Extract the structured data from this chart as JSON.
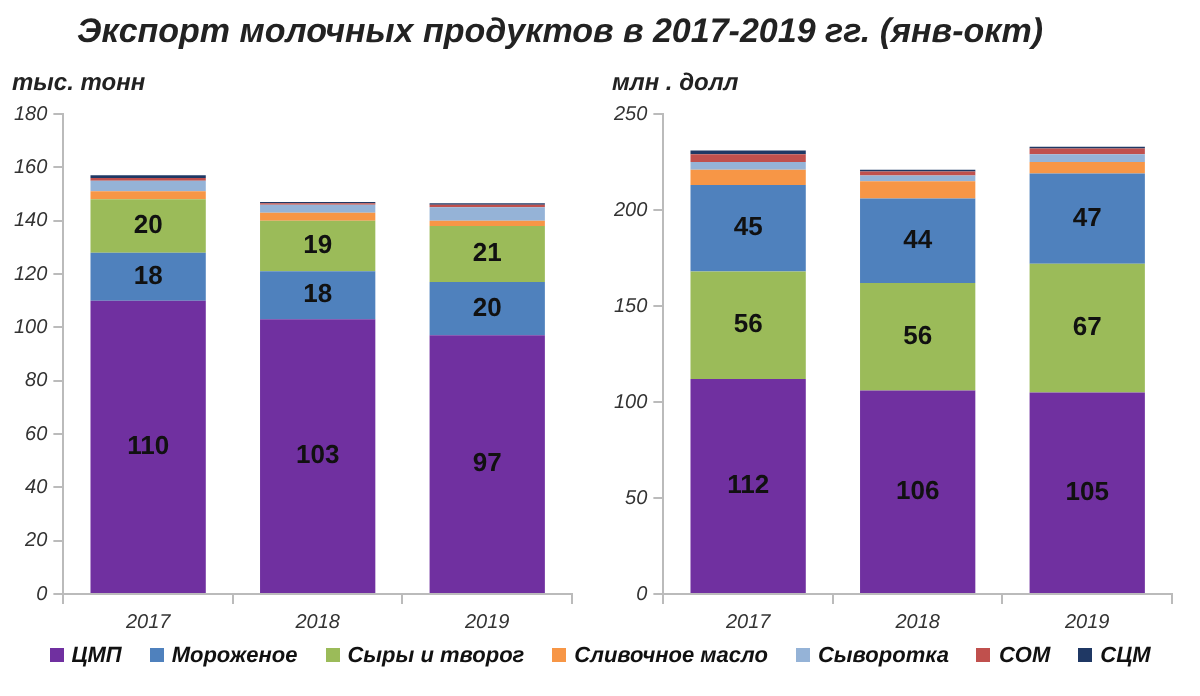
{
  "chart_data": [
    {
      "type": "bar",
      "title": "Экспорт молочных продуктов в 2017-2019 гг. (янв-окт)",
      "ylabel": "тыс. тонн",
      "categories": [
        "2017",
        "2018",
        "2019"
      ],
      "stacked": true,
      "ylim": [
        0,
        180
      ],
      "yticks": [
        0,
        20,
        40,
        60,
        80,
        100,
        120,
        140,
        160,
        180
      ],
      "grid": false,
      "legend": "bottom",
      "series": [
        {
          "name": "ЦМП",
          "color": "#7030a0",
          "values": [
            110,
            103,
            97
          ],
          "value_labels": [
            "110",
            "103",
            "97"
          ]
        },
        {
          "name": "Мороженое",
          "color": "#4f81bd",
          "values": [
            18,
            18,
            20
          ],
          "value_labels": [
            "18",
            "18",
            "20"
          ]
        },
        {
          "name": "Сыры и творог",
          "color": "#9bbb59",
          "values": [
            20,
            19,
            21
          ],
          "value_labels": [
            "20",
            "19",
            "21"
          ]
        },
        {
          "name": "Сливочное масло",
          "color": "#f79646",
          "values": [
            3,
            3,
            2
          ],
          "value_labels": [
            null,
            null,
            null
          ]
        },
        {
          "name": "Сыворотка",
          "color": "#95b3d7",
          "values": [
            4,
            3,
            5
          ],
          "value_labels": [
            null,
            null,
            null
          ]
        },
        {
          "name": "СОМ",
          "color": "#c0504d",
          "values": [
            1,
            0.5,
            1
          ],
          "value_labels": [
            null,
            null,
            null
          ]
        },
        {
          "name": "СЦМ",
          "color": "#1f3864",
          "values": [
            1,
            0.5,
            0.5
          ],
          "value_labels": [
            null,
            null,
            null
          ]
        }
      ]
    },
    {
      "type": "bar",
      "ylabel": "млн . долл",
      "categories": [
        "2017",
        "2018",
        "2019"
      ],
      "stacked": true,
      "ylim": [
        0,
        250
      ],
      "yticks": [
        0,
        50,
        100,
        150,
        200,
        250
      ],
      "grid": false,
      "legend": "bottom",
      "series": [
        {
          "name": "ЦМП",
          "color": "#7030a0",
          "values": [
            112,
            106,
            105
          ],
          "value_labels": [
            "112",
            "106",
            "105"
          ]
        },
        {
          "name": "Сыры и творог",
          "color": "#9bbb59",
          "values": [
            56,
            56,
            67
          ],
          "value_labels": [
            "56",
            "56",
            "67"
          ]
        },
        {
          "name": "Мороженое",
          "color": "#4f81bd",
          "values": [
            45,
            44,
            47
          ],
          "value_labels": [
            "45",
            "44",
            "47"
          ]
        },
        {
          "name": "Сливочное масло",
          "color": "#f79646",
          "values": [
            8,
            9,
            6
          ],
          "value_labels": [
            null,
            null,
            null
          ]
        },
        {
          "name": "Сыворотка",
          "color": "#95b3d7",
          "values": [
            4,
            3,
            4
          ],
          "value_labels": [
            null,
            null,
            null
          ]
        },
        {
          "name": "СОМ",
          "color": "#c0504d",
          "values": [
            4,
            2,
            3
          ],
          "value_labels": [
            null,
            null,
            null
          ]
        },
        {
          "name": "СЦМ",
          "color": "#1f3864",
          "values": [
            2,
            1,
            1
          ],
          "value_labels": [
            null,
            null,
            null
          ]
        }
      ]
    }
  ]
}
